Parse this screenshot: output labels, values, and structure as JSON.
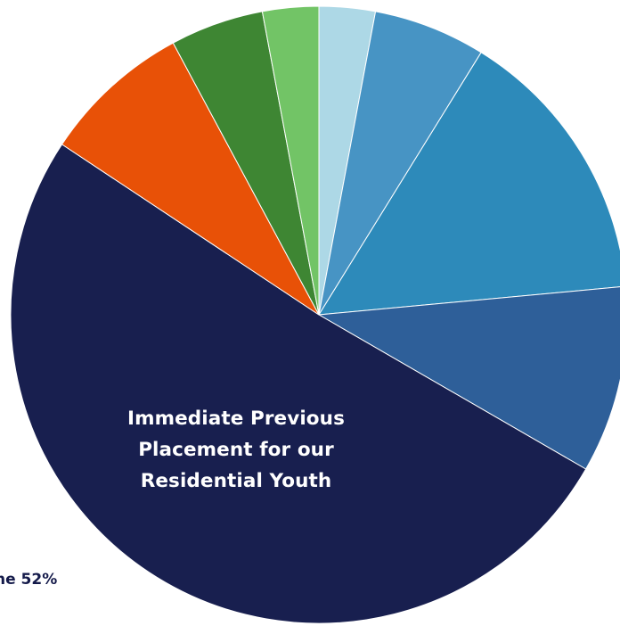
{
  "chart_data": {
    "type": "pie",
    "title_lines": [
      "Immediate Previous",
      "Placement for our",
      "Residential Youth"
    ],
    "slices": [
      {
        "value": 3,
        "color": "#add8e6"
      },
      {
        "value": 6,
        "color": "#4794c4"
      },
      {
        "value": 15,
        "color": "#2d8aba"
      },
      {
        "value": 10,
        "color": "#2e5f99"
      },
      {
        "value": 52,
        "color": "#181f4f"
      },
      {
        "value": 8,
        "color": "#e85107"
      },
      {
        "value": 5,
        "color": "#3e8633"
      },
      {
        "value": 3,
        "color": "#72c466"
      }
    ],
    "visible_slice_label": "ne 52%",
    "separator_color": "#ffffff"
  }
}
